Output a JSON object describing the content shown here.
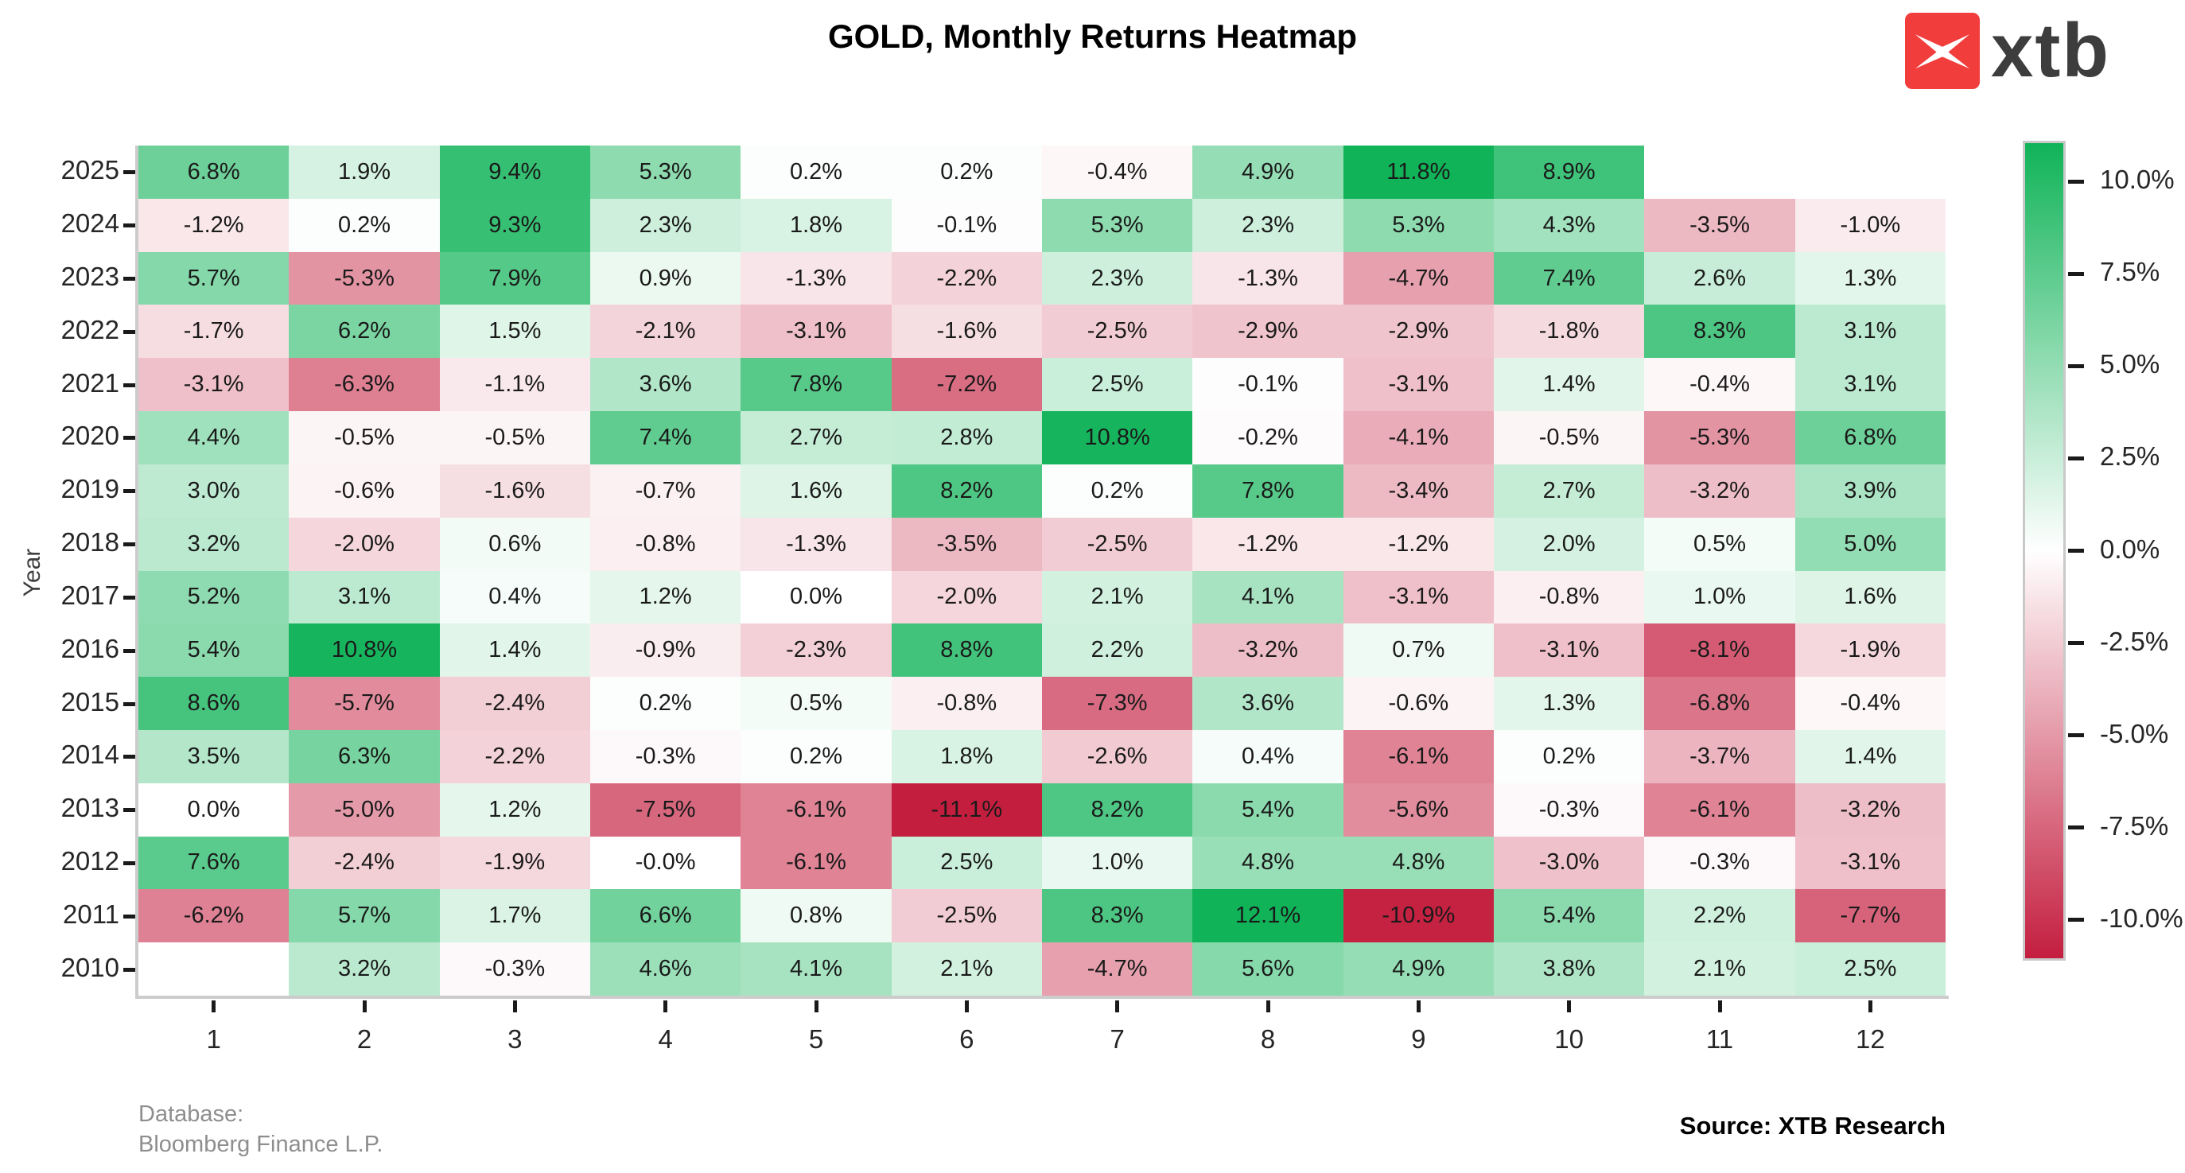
{
  "title": "GOLD, Monthly Returns Heatmap",
  "logo": {
    "text": "xtb",
    "box_color": "#f23d3d",
    "text_color": "#3d3d3d"
  },
  "footer": {
    "database_label": "Database:",
    "database_name": "Bloomberg Finance L.P.",
    "source": "Source: XTB Research"
  },
  "chart_data": {
    "type": "heatmap",
    "title": "GOLD, Monthly Returns Heatmap",
    "xlabel": "",
    "ylabel": "Year",
    "x_ticks": [
      "1",
      "2",
      "3",
      "4",
      "5",
      "6",
      "7",
      "8",
      "9",
      "10",
      "11",
      "12"
    ],
    "y_ticks": [
      "2025",
      "2024",
      "2023",
      "2022",
      "2021",
      "2020",
      "2019",
      "2018",
      "2017",
      "2016",
      "2015",
      "2014",
      "2013",
      "2012",
      "2011",
      "2010"
    ],
    "unit": "%",
    "missing_cells": [
      [
        "2025",
        "11"
      ],
      [
        "2025",
        "12"
      ],
      [
        "2010",
        "1"
      ]
    ],
    "rows": [
      {
        "year": "2025",
        "cells": [
          "6.8%",
          "1.9%",
          "9.4%",
          "5.3%",
          "0.2%",
          "0.2%",
          "-0.4%",
          "4.9%",
          "11.8%",
          "8.9%",
          "",
          ""
        ]
      },
      {
        "year": "2024",
        "cells": [
          "-1.2%",
          "0.2%",
          "9.3%",
          "2.3%",
          "1.8%",
          "-0.1%",
          "5.3%",
          "2.3%",
          "5.3%",
          "4.3%",
          "-3.5%",
          "-1.0%"
        ]
      },
      {
        "year": "2023",
        "cells": [
          "5.7%",
          "-5.3%",
          "7.9%",
          "0.9%",
          "-1.3%",
          "-2.2%",
          "2.3%",
          "-1.3%",
          "-4.7%",
          "7.4%",
          "2.6%",
          "1.3%"
        ]
      },
      {
        "year": "2022",
        "cells": [
          "-1.7%",
          "6.2%",
          "1.5%",
          "-2.1%",
          "-3.1%",
          "-1.6%",
          "-2.5%",
          "-2.9%",
          "-2.9%",
          "-1.8%",
          "8.3%",
          "3.1%"
        ]
      },
      {
        "year": "2021",
        "cells": [
          "-3.1%",
          "-6.3%",
          "-1.1%",
          "3.6%",
          "7.8%",
          "-7.2%",
          "2.5%",
          "-0.1%",
          "-3.1%",
          "1.4%",
          "-0.4%",
          "3.1%"
        ]
      },
      {
        "year": "2020",
        "cells": [
          "4.4%",
          "-0.5%",
          "-0.5%",
          "7.4%",
          "2.7%",
          "2.8%",
          "10.8%",
          "-0.2%",
          "-4.1%",
          "-0.5%",
          "-5.3%",
          "6.8%"
        ]
      },
      {
        "year": "2019",
        "cells": [
          "3.0%",
          "-0.6%",
          "-1.6%",
          "-0.7%",
          "1.6%",
          "8.2%",
          "0.2%",
          "7.8%",
          "-3.4%",
          "2.7%",
          "-3.2%",
          "3.9%"
        ]
      },
      {
        "year": "2018",
        "cells": [
          "3.2%",
          "-2.0%",
          "0.6%",
          "-0.8%",
          "-1.3%",
          "-3.5%",
          "-2.5%",
          "-1.2%",
          "-1.2%",
          "2.0%",
          "0.5%",
          "5.0%"
        ]
      },
      {
        "year": "2017",
        "cells": [
          "5.2%",
          "3.1%",
          "0.4%",
          "1.2%",
          "0.0%",
          "-2.0%",
          "2.1%",
          "4.1%",
          "-3.1%",
          "-0.8%",
          "1.0%",
          "1.6%"
        ]
      },
      {
        "year": "2016",
        "cells": [
          "5.4%",
          "10.8%",
          "1.4%",
          "-0.9%",
          "-2.3%",
          "8.8%",
          "2.2%",
          "-3.2%",
          "0.7%",
          "-3.1%",
          "-8.1%",
          "-1.9%"
        ]
      },
      {
        "year": "2015",
        "cells": [
          "8.6%",
          "-5.7%",
          "-2.4%",
          "0.2%",
          "0.5%",
          "-0.8%",
          "-7.3%",
          "3.6%",
          "-0.6%",
          "1.3%",
          "-6.8%",
          "-0.4%"
        ]
      },
      {
        "year": "2014",
        "cells": [
          "3.5%",
          "6.3%",
          "-2.2%",
          "-0.3%",
          "0.2%",
          "1.8%",
          "-2.6%",
          "0.4%",
          "-6.1%",
          "0.2%",
          "-3.7%",
          "1.4%"
        ]
      },
      {
        "year": "2013",
        "cells": [
          "0.0%",
          "-5.0%",
          "1.2%",
          "-7.5%",
          "-6.1%",
          "-11.1%",
          "8.2%",
          "5.4%",
          "-5.6%",
          "-0.3%",
          "-6.1%",
          "-3.2%"
        ]
      },
      {
        "year": "2012",
        "cells": [
          "7.6%",
          "-2.4%",
          "-1.9%",
          "-0.0%",
          "-6.1%",
          "2.5%",
          "1.0%",
          "4.8%",
          "4.8%",
          "-3.0%",
          "-0.3%",
          "-3.1%"
        ]
      },
      {
        "year": "2011",
        "cells": [
          "-6.2%",
          "5.7%",
          "1.7%",
          "6.6%",
          "0.8%",
          "-2.5%",
          "8.3%",
          "12.1%",
          "-10.9%",
          "5.4%",
          "2.2%",
          "-7.7%"
        ]
      },
      {
        "year": "2010",
        "cells": [
          "",
          "3.2%",
          "-0.3%",
          "4.6%",
          "4.1%",
          "2.1%",
          "-4.7%",
          "5.6%",
          "4.9%",
          "3.8%",
          "2.1%",
          "2.5%"
        ]
      }
    ],
    "colorbar": {
      "position": "right",
      "tick_labels": [
        "10.0%",
        "7.5%",
        "5.0%",
        "2.5%",
        "0.0%",
        "-2.5%",
        "-5.0%",
        "-7.5%",
        "-10.0%"
      ],
      "tick_values": [
        10.0,
        7.5,
        5.0,
        2.5,
        0.0,
        -2.5,
        -5.0,
        -7.5,
        -10.0
      ],
      "vmin": -11.1,
      "vmax": 11.1,
      "max_color": "#10b358",
      "mid_color": "#ffffff",
      "min_color": "#c41e3f"
    }
  }
}
